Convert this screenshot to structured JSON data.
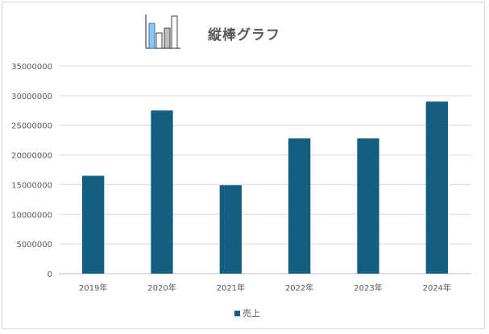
{
  "chart_data": {
    "type": "bar",
    "title": "縦棒グラフ",
    "categories": [
      "2019年",
      "2020年",
      "2021年",
      "2022年",
      "2023年",
      "2024年"
    ],
    "series": [
      {
        "name": "売上",
        "values": [
          16500000,
          27500000,
          14900000,
          22800000,
          22800000,
          29000000
        ],
        "color": "#135e81"
      }
    ],
    "ylim": [
      0,
      35000000
    ],
    "yticks": [
      0,
      5000000,
      10000000,
      15000000,
      20000000,
      25000000,
      30000000,
      35000000
    ],
    "grid": true,
    "legend_position": "bottom",
    "title_icon": "bar-chart-icon"
  }
}
